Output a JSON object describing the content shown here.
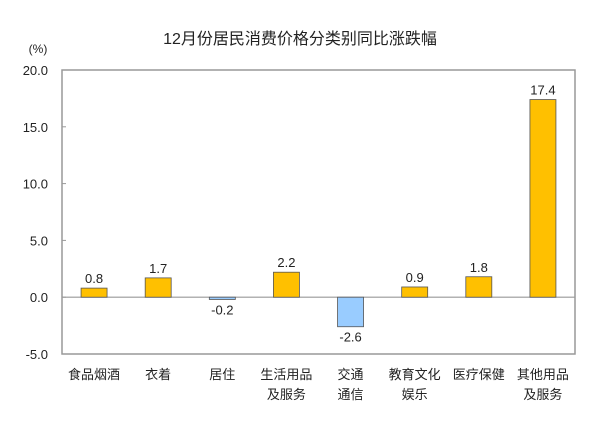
{
  "chart_data": {
    "type": "bar",
    "title": "12月份居民消费价格分类别同比涨跌幅",
    "ylabel": "(%)",
    "xlabel": "",
    "ylim": [
      -5.0,
      20.0
    ],
    "yticks": [
      "20.0",
      "15.0",
      "10.0",
      "5.0",
      "0.0",
      "-5.0"
    ],
    "categories": [
      [
        "食品烟酒"
      ],
      [
        "衣着"
      ],
      [
        "居住"
      ],
      [
        "生活用品",
        "及服务"
      ],
      [
        "交通",
        "通信"
      ],
      [
        "教育文化",
        "娱乐"
      ],
      [
        "医疗保健"
      ],
      [
        "其他用品",
        "及服务"
      ]
    ],
    "values": [
      0.8,
      1.7,
      -0.2,
      2.2,
      -2.6,
      0.9,
      1.8,
      17.4
    ],
    "data_labels": [
      "0.8",
      "1.7",
      "-0.2",
      "2.2",
      "-2.6",
      "0.9",
      "1.8",
      "17.4"
    ],
    "colors": {
      "positive": "#FFC000",
      "negative": "#99CCFF",
      "outline": "#555555"
    },
    "grid": false,
    "legend": "none"
  }
}
